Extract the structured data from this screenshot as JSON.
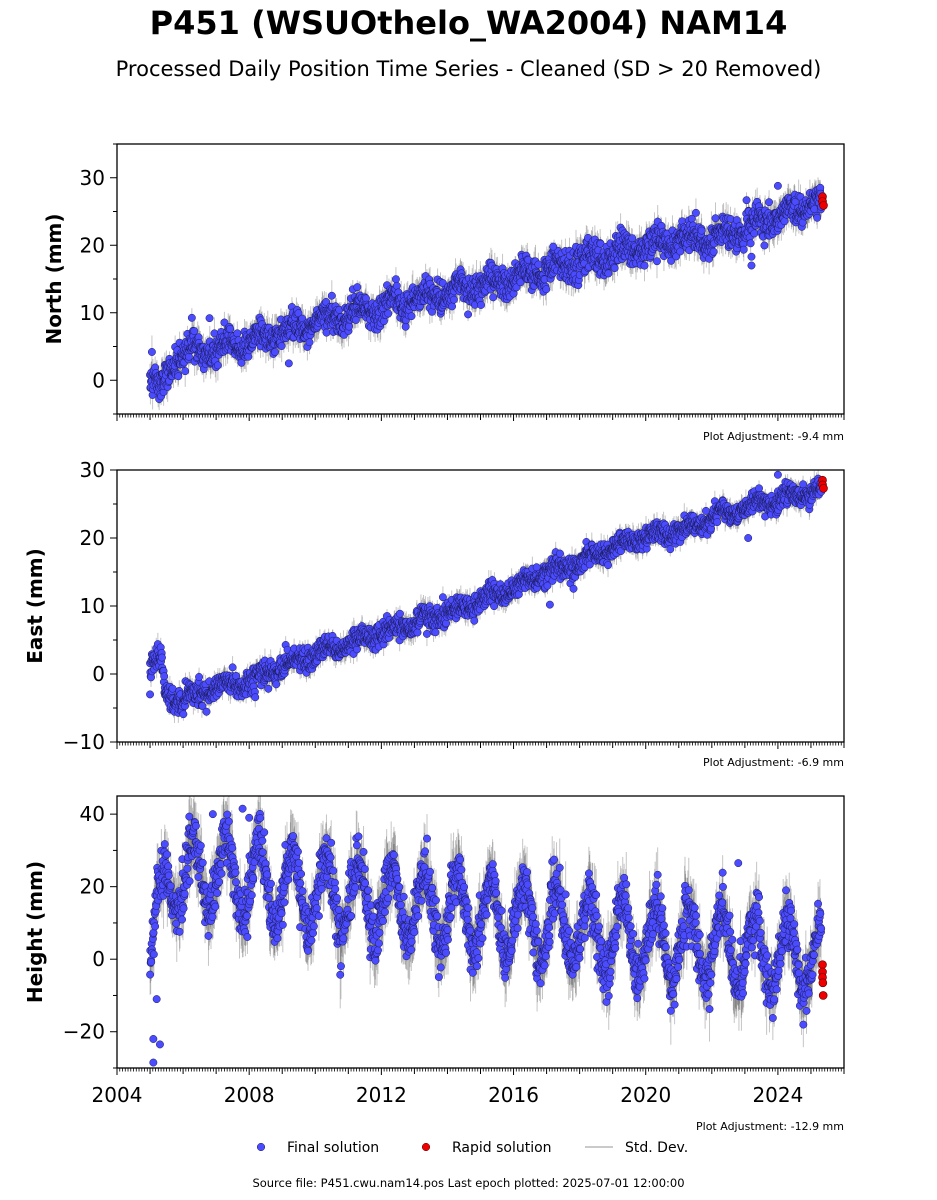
{
  "title": "P451 (WSUOthelo_WA2004) NAM14",
  "subtitle": "Processed Daily Position Time Series - Cleaned (SD > 20 Removed)",
  "footer": "Source file: P451.cwu.nam14.pos  Last epoch plotted: 2025-07-01 12:00:00",
  "colors": {
    "final": "#4b4bff",
    "rapid": "#ee0000",
    "stddev": "#b8b8b8",
    "axis": "#000000"
  },
  "legend": [
    {
      "label": "Final solution",
      "marker": "blue-dot"
    },
    {
      "label": "Rapid solution",
      "marker": "red-dot"
    },
    {
      "label": "Std. Dev.",
      "marker": "gray-line"
    }
  ],
  "chart_data": [
    {
      "type": "scatter",
      "ylabel": "North (mm)",
      "xlim": [
        2004,
        2026
      ],
      "ylim": [
        -5,
        35
      ],
      "yticks": [
        0,
        10,
        20,
        30
      ],
      "ytick_labels": [
        "0",
        "10",
        "20",
        "30"
      ],
      "show_xtick_labels": false,
      "adjustment": "Plot Adjustment: -9.4 mm",
      "trend": [
        [
          2005.0,
          0.0
        ],
        [
          2005.3,
          -1.0
        ],
        [
          2005.8,
          3.5
        ],
        [
          2008.0,
          5.5
        ],
        [
          2010.0,
          8.5
        ],
        [
          2014.0,
          13.0
        ],
        [
          2018.0,
          17.5
        ],
        [
          2020.5,
          20.5
        ],
        [
          2022.0,
          21.0
        ],
        [
          2025.3,
          26.5
        ]
      ],
      "seasonal_amp": 1.0,
      "scatter_sd": 1.1,
      "rapid": [
        [
          2025.35,
          27.2
        ],
        [
          2025.35,
          26.5
        ],
        [
          2025.38,
          25.9
        ]
      ],
      "outliers": [
        [
          2009.2,
          2.5
        ],
        [
          2017.2,
          19.8
        ],
        [
          2023.2,
          17.0
        ],
        [
          2023.2,
          18.3
        ],
        [
          2024.0,
          28.8
        ],
        [
          2006.8,
          9.2
        ]
      ]
    },
    {
      "type": "scatter",
      "ylabel": "East (mm)",
      "xlim": [
        2004,
        2026
      ],
      "ylim": [
        -10,
        30
      ],
      "yticks": [
        -10,
        0,
        10,
        20,
        30
      ],
      "ytick_labels": [
        "−10",
        "0",
        "10",
        "20",
        "30"
      ],
      "show_xtick_labels": false,
      "adjustment": "Plot Adjustment: -6.9 mm",
      "trend": [
        [
          2005.0,
          0.5
        ],
        [
          2005.35,
          2.0
        ],
        [
          2005.45,
          -3.0
        ],
        [
          2006.0,
          -4.0
        ],
        [
          2007.0,
          -2.0
        ],
        [
          2008.0,
          -1.0
        ],
        [
          2010.0,
          3.0
        ],
        [
          2014.0,
          9.0
        ],
        [
          2018.0,
          16.5
        ],
        [
          2020.0,
          20.5
        ],
        [
          2021.0,
          21.0
        ],
        [
          2023.0,
          24.5
        ],
        [
          2025.3,
          27.0
        ]
      ],
      "seasonal_amp": 0.6,
      "scatter_sd": 0.8,
      "rapid": [
        [
          2025.35,
          28.5
        ],
        [
          2025.35,
          27.8
        ],
        [
          2025.38,
          27.3
        ]
      ],
      "outliers": [
        [
          2005.0,
          -3.0
        ],
        [
          2017.1,
          10.2
        ],
        [
          2023.1,
          20.0
        ],
        [
          2024.0,
          29.3
        ],
        [
          2016.7,
          15.7
        ]
      ]
    },
    {
      "type": "scatter",
      "ylabel": "Height (mm)",
      "xlim": [
        2004,
        2026
      ],
      "ylim": [
        -30,
        45
      ],
      "yticks": [
        -20,
        0,
        20,
        40
      ],
      "ytick_labels": [
        "−20",
        "0",
        "20",
        "40"
      ],
      "show_xtick_labels": true,
      "xticks": [
        2004,
        2008,
        2012,
        2016,
        2020,
        2024
      ],
      "xtick_labels": [
        "2004",
        "2008",
        "2012",
        "2016",
        "2020",
        "2024"
      ],
      "adjustment": "Plot Adjustment: -12.9 mm",
      "trend": [
        [
          2005.0,
          0.0
        ],
        [
          2005.5,
          22.0
        ],
        [
          2007.0,
          24.0
        ],
        [
          2010.0,
          18.0
        ],
        [
          2014.0,
          14.0
        ],
        [
          2018.0,
          8.0
        ],
        [
          2022.0,
          3.0
        ],
        [
          2025.3,
          0.0
        ]
      ],
      "seasonal_amp": 10.0,
      "scatter_sd": 3.5,
      "rapid": [
        [
          2025.35,
          -1.5
        ],
        [
          2025.35,
          -3.5
        ],
        [
          2025.35,
          -5.0
        ],
        [
          2025.36,
          -6.5
        ],
        [
          2025.37,
          -10.0
        ]
      ],
      "outliers": [
        [
          2005.1,
          -28.5
        ],
        [
          2005.1,
          -22.0
        ],
        [
          2005.3,
          -23.5
        ],
        [
          2005.2,
          -11.0
        ],
        [
          2007.8,
          41.5
        ],
        [
          2008.0,
          39.0
        ],
        [
          2022.8,
          26.5
        ],
        [
          2006.9,
          40.0
        ]
      ]
    }
  ]
}
